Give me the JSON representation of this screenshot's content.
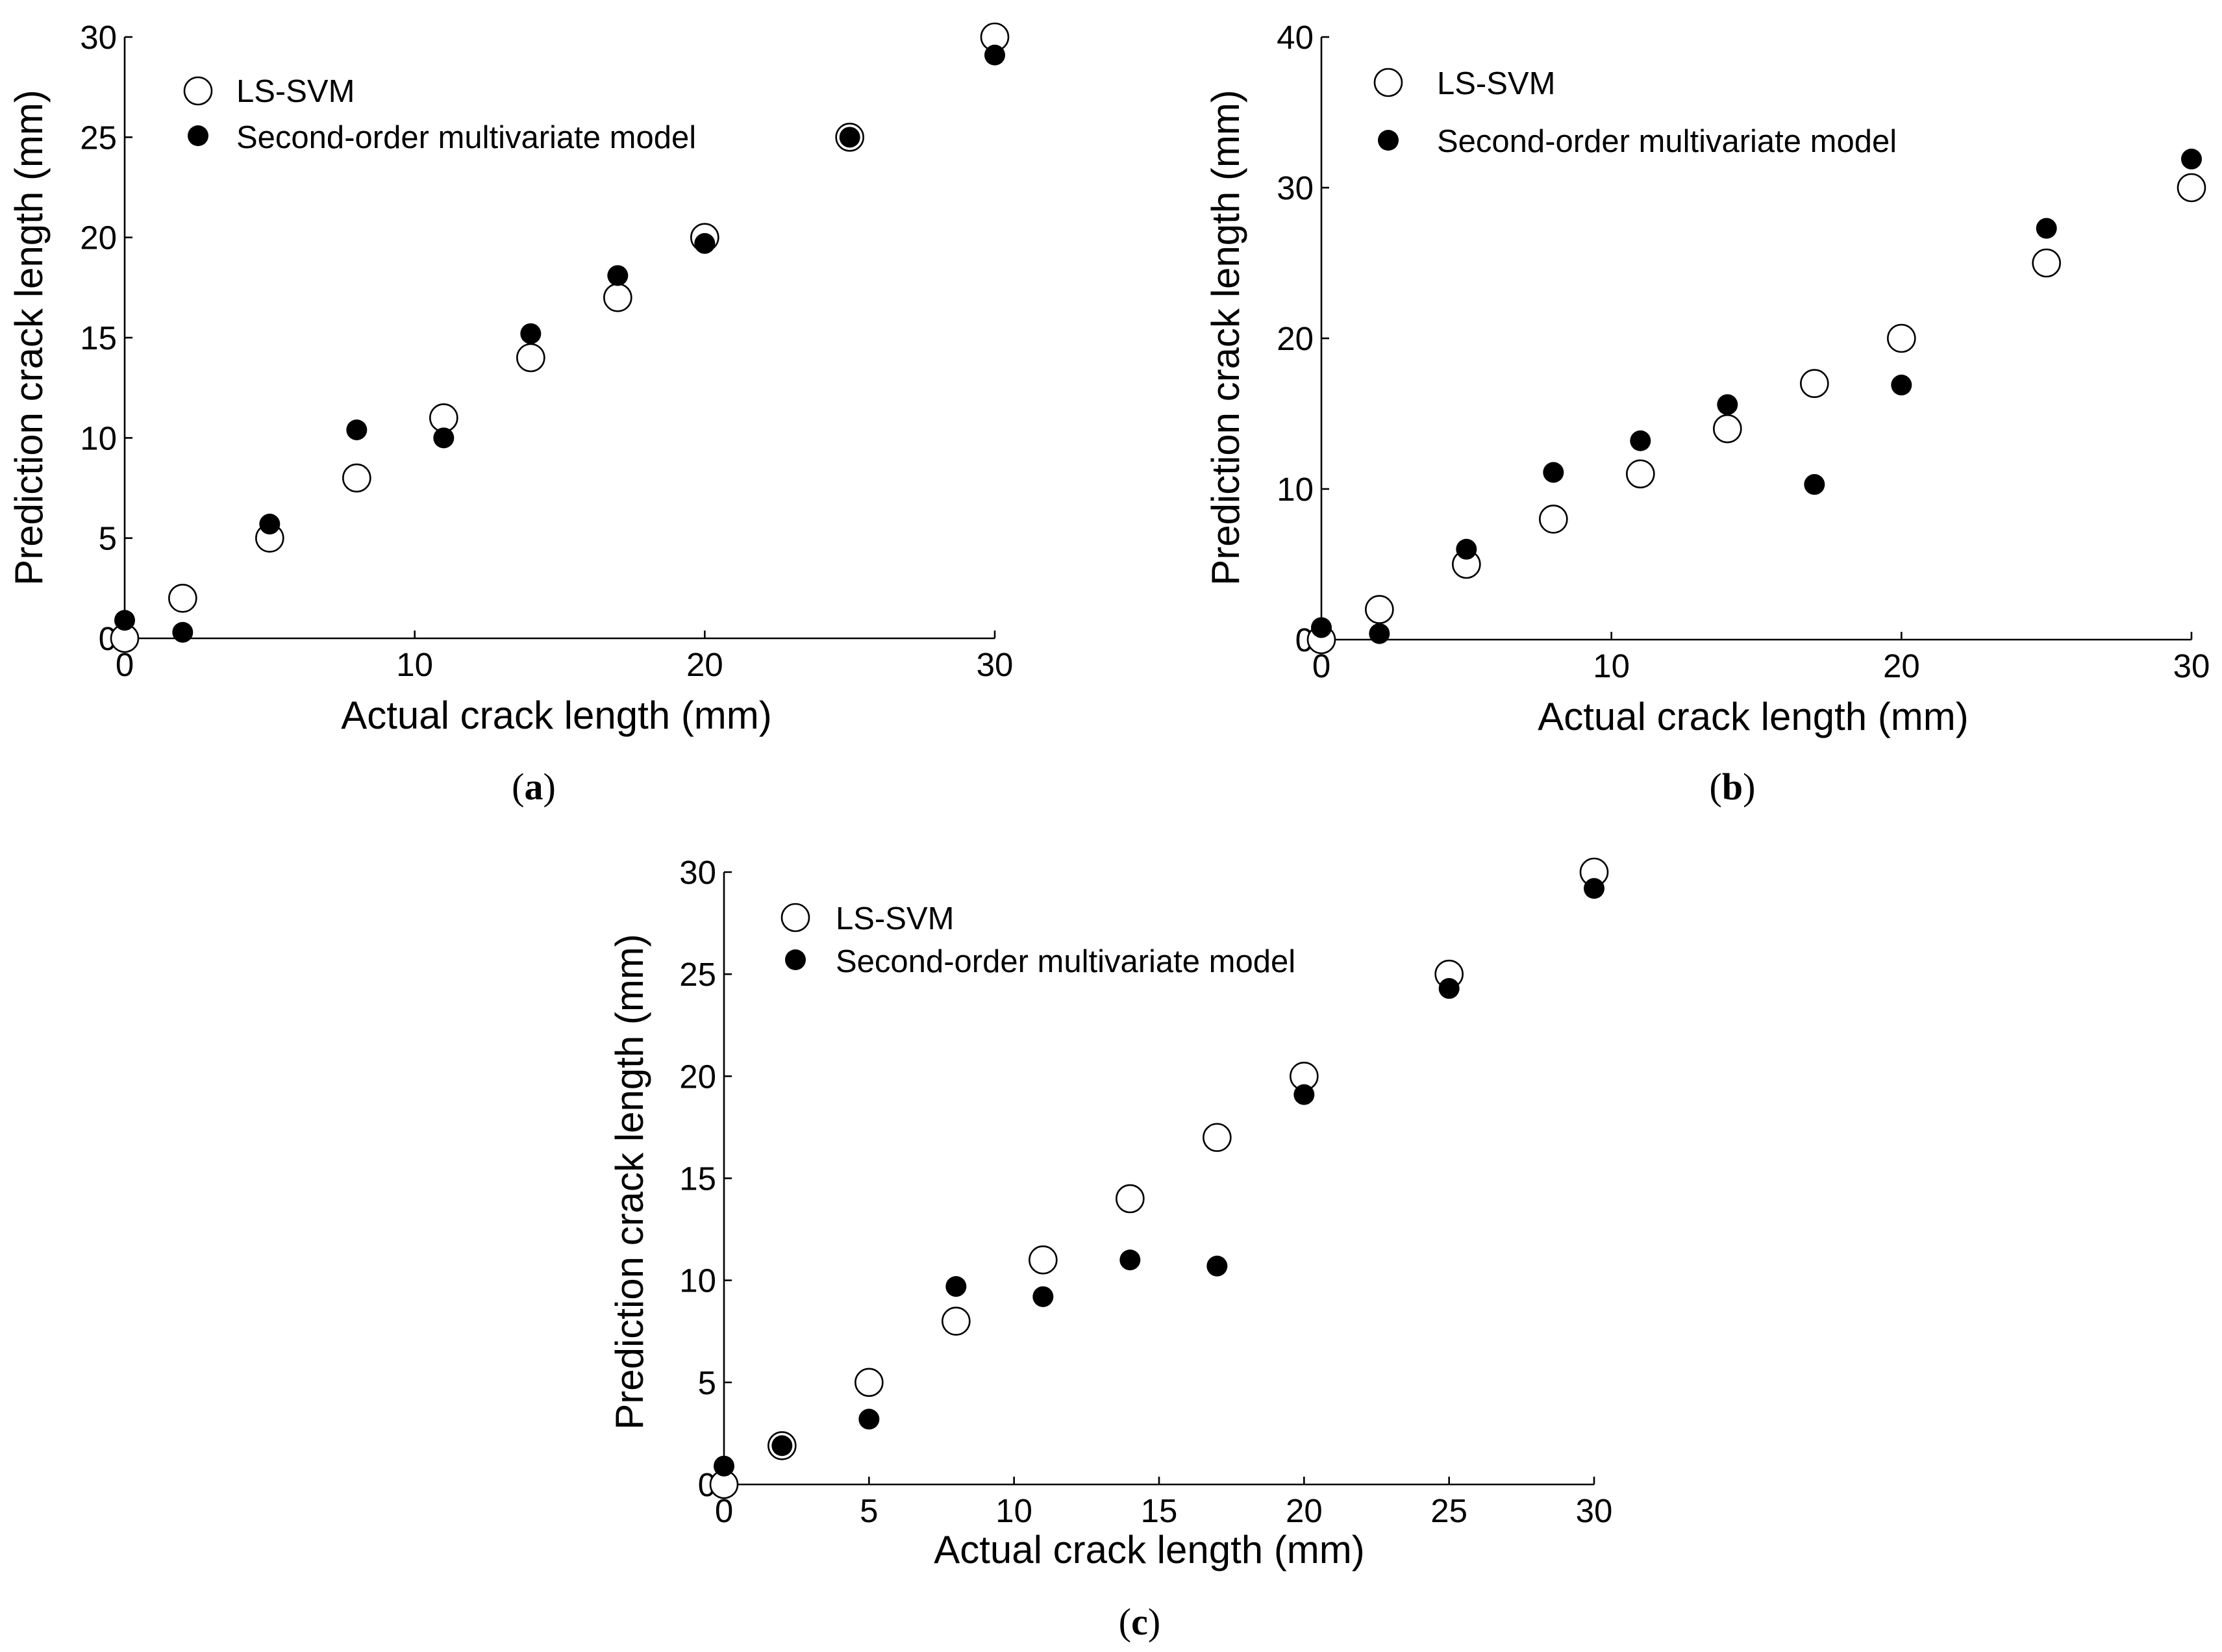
{
  "chart_data": [
    {
      "type": "scatter",
      "panel_label": "a",
      "xlabel": "Actual crack length (mm)",
      "ylabel": "Prediction crack length (mm)",
      "xlim": [
        0,
        30
      ],
      "ylim": [
        0,
        30
      ],
      "xticks": [
        0,
        10,
        20,
        30
      ],
      "yticks": [
        0,
        5,
        10,
        15,
        20,
        25,
        30
      ],
      "legend_position": "top-left",
      "series": [
        {
          "name": "LS-SVM",
          "marker": "open-circle",
          "x": [
            0,
            2,
            5,
            8,
            11,
            14,
            17,
            20,
            25,
            30
          ],
          "y": [
            0,
            2,
            5,
            8,
            11,
            14,
            17,
            20,
            25,
            30
          ]
        },
        {
          "name": "Second-order multivariate model",
          "marker": "filled-circle",
          "x": [
            0,
            2,
            5,
            8,
            11,
            14,
            17,
            20,
            25,
            30
          ],
          "y": [
            0.9,
            0.3,
            5.7,
            10.4,
            10.0,
            15.2,
            18.1,
            19.7,
            25.0,
            29.1
          ]
        }
      ]
    },
    {
      "type": "scatter",
      "panel_label": "b",
      "xlabel": "Actual crack length (mm)",
      "ylabel": "Prediction crack length (mm)",
      "xlim": [
        0,
        30
      ],
      "ylim": [
        0,
        40
      ],
      "xticks": [
        0,
        10,
        20,
        30
      ],
      "yticks": [
        0,
        10,
        20,
        30,
        40
      ],
      "legend_position": "top-left",
      "series": [
        {
          "name": "LS-SVM",
          "marker": "open-circle",
          "x": [
            0,
            2,
            5,
            8,
            11,
            14,
            17,
            20,
            25,
            30
          ],
          "y": [
            0,
            2,
            5,
            8,
            11,
            14,
            17,
            20,
            25,
            30
          ]
        },
        {
          "name": "Second-order multivariate model",
          "marker": "filled-circle",
          "x": [
            0,
            2,
            5,
            8,
            11,
            14,
            17,
            20,
            25,
            30
          ],
          "y": [
            0.8,
            0.4,
            6.0,
            11.1,
            13.2,
            15.6,
            10.3,
            16.9,
            27.3,
            31.9
          ]
        }
      ]
    },
    {
      "type": "scatter",
      "panel_label": "c",
      "xlabel": "Actual crack length (mm)",
      "ylabel": "Prediction crack length (mm)",
      "xlim": [
        0,
        30
      ],
      "ylim": [
        0,
        30
      ],
      "xticks": [
        0,
        5,
        10,
        15,
        20,
        25,
        30
      ],
      "yticks": [
        0,
        5,
        10,
        15,
        20,
        25,
        30
      ],
      "legend_position": "top-left",
      "series": [
        {
          "name": "LS-SVM",
          "marker": "open-circle",
          "x": [
            0,
            2,
            5,
            8,
            11,
            14,
            17,
            20,
            25,
            30
          ],
          "y": [
            0,
            1.9,
            5,
            8,
            11,
            14,
            17,
            20,
            25,
            30
          ]
        },
        {
          "name": "Second-order multivariate model",
          "marker": "filled-circle",
          "x": [
            0,
            2,
            5,
            8,
            11,
            14,
            17,
            20,
            25,
            30
          ],
          "y": [
            0.9,
            1.9,
            3.2,
            9.7,
            9.2,
            11.0,
            10.7,
            19.1,
            24.3,
            29.2
          ]
        }
      ]
    }
  ]
}
